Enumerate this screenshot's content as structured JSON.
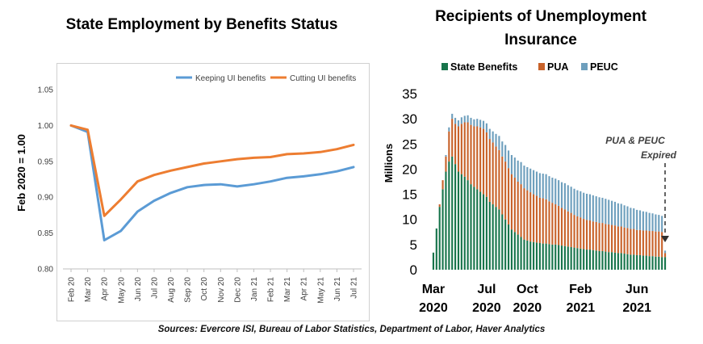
{
  "left_chart": {
    "title": "State Employment by Benefits Status",
    "ylabel": "Feb 2020 = 1.00"
  },
  "right_chart": {
    "title_line1": "Recipients of Unemployment",
    "title_line2": "Insurance",
    "ylabel": "Millions",
    "annotation_line1": "PUA & PEUC",
    "annotation_line2": "Expired"
  },
  "sources": "Sources: Evercore ISI, Bureau of Labor Statistics, Department of Labor, Haver Analytics",
  "chart_data": [
    {
      "type": "line",
      "title": "State Employment by Benefits Status",
      "xlabel": "",
      "ylabel": "Feb 2020 = 1.00",
      "ylim": [
        0.8,
        1.05
      ],
      "yticks": [
        "0.80",
        "0.85",
        "0.90",
        "0.95",
        "1.00",
        "1.05"
      ],
      "categories": [
        "Feb 20",
        "Mar 20",
        "Apr 20",
        "May 20",
        "Jun 20",
        "Jul 20",
        "Aug 20",
        "Sep 20",
        "Oct 20",
        "Nov 20",
        "Dec 20",
        "Jan 21",
        "Feb 21",
        "Mar 21",
        "Apr 21",
        "May 21",
        "Jun 21",
        "Jul 21"
      ],
      "legend_position": "top-right",
      "grid": false,
      "series": [
        {
          "name": "Keeping UI benefits",
          "color": "#5b9bd5",
          "values": [
            1.0,
            0.991,
            0.84,
            0.853,
            0.88,
            0.895,
            0.906,
            0.914,
            0.917,
            0.918,
            0.915,
            0.918,
            0.922,
            0.927,
            0.929,
            0.932,
            0.936,
            0.942
          ]
        },
        {
          "name": "Cutting UI benefits",
          "color": "#ed7d31",
          "values": [
            1.0,
            0.994,
            0.874,
            0.897,
            0.922,
            0.931,
            0.937,
            0.942,
            0.947,
            0.95,
            0.953,
            0.955,
            0.956,
            0.96,
            0.961,
            0.963,
            0.967,
            0.973
          ]
        }
      ]
    },
    {
      "type": "bar",
      "stacked": true,
      "title": "Recipients of Unemployment Insurance",
      "ylabel": "Millions",
      "ylim": [
        0,
        35
      ],
      "yticks": [
        "0",
        "5",
        "10",
        "15",
        "20",
        "25",
        "30",
        "35"
      ],
      "xtick_labels": [
        {
          "line1": "Mar",
          "line2": "2020",
          "week": 0
        },
        {
          "line1": "Jul",
          "line2": "2020",
          "week": 17
        },
        {
          "line1": "Oct",
          "line2": "2020",
          "week": 30
        },
        {
          "line1": "Feb",
          "line2": "2021",
          "week": 47
        },
        {
          "line1": "Jun",
          "line2": "2021",
          "week": 65
        }
      ],
      "legend_position": "top",
      "series": [
        {
          "name": "State Benefits",
          "color": "#17744b",
          "values": [
            3.4,
            8.2,
            12.5,
            16.0,
            19.5,
            21.5,
            22.5,
            21.0,
            19.5,
            19.0,
            18.5,
            17.8,
            17.0,
            16.5,
            16.0,
            15.5,
            15.0,
            14.5,
            13.5,
            13.0,
            12.5,
            12.0,
            11.0,
            10.0,
            9.0,
            8.0,
            7.5,
            7.0,
            6.5,
            6.0,
            5.8,
            5.6,
            5.5,
            5.4,
            5.3,
            5.2,
            5.2,
            5.1,
            5.0,
            5.0,
            4.9,
            4.8,
            4.7,
            4.6,
            4.5,
            4.4,
            4.3,
            4.2,
            4.1,
            4.0,
            4.0,
            3.9,
            3.8,
            3.7,
            3.7,
            3.6,
            3.5,
            3.5,
            3.4,
            3.3,
            3.3,
            3.2,
            3.1,
            3.0,
            3.0,
            2.9,
            2.9,
            2.8,
            2.8,
            2.7,
            2.7,
            2.6,
            2.6,
            2.5,
            2.5
          ]
        },
        {
          "name": "PUA",
          "color": "#c8622a",
          "values": [
            0,
            0,
            0.5,
            1.8,
            3.0,
            6.0,
            7.5,
            8.0,
            9.0,
            10.0,
            10.8,
            11.5,
            11.8,
            12.0,
            12.5,
            12.8,
            13.0,
            12.8,
            12.5,
            12.3,
            12.0,
            11.8,
            11.5,
            11.5,
            11.2,
            11.0,
            10.8,
            10.5,
            10.5,
            10.2,
            10.0,
            9.8,
            9.5,
            9.3,
            9.0,
            9.0,
            8.8,
            8.5,
            8.3,
            8.0,
            7.8,
            7.5,
            7.3,
            7.0,
            6.8,
            6.5,
            6.3,
            6.2,
            6.0,
            5.9,
            5.8,
            5.7,
            5.7,
            5.6,
            5.6,
            5.5,
            5.5,
            5.4,
            5.4,
            5.3,
            5.3,
            5.2,
            5.2,
            5.1,
            5.1,
            5.0,
            5.0,
            5.0,
            5.0,
            5.0,
            5.0,
            5.0,
            5.0,
            5.0,
            0.8
          ]
        },
        {
          "name": "PEUC",
          "color": "#6e9fbd",
          "values": [
            0,
            0,
            0,
            0,
            0.3,
            0.8,
            1.0,
            1.2,
            1.2,
            1.3,
            1.3,
            1.4,
            1.4,
            1.4,
            1.5,
            1.5,
            1.6,
            1.8,
            2.0,
            2.2,
            2.5,
            2.8,
            3.0,
            3.3,
            3.5,
            3.8,
            4.0,
            4.2,
            4.4,
            4.5,
            4.6,
            4.7,
            4.8,
            4.8,
            4.9,
            4.9,
            5.0,
            5.0,
            5.0,
            5.1,
            5.1,
            5.1,
            5.2,
            5.2,
            5.2,
            5.2,
            5.2,
            5.2,
            5.2,
            5.2,
            5.2,
            5.2,
            5.1,
            5.1,
            5.0,
            5.0,
            4.9,
            4.8,
            4.7,
            4.6,
            4.5,
            4.4,
            4.3,
            4.2,
            4.1,
            4.0,
            3.9,
            3.8,
            3.7,
            3.6,
            3.5,
            3.4,
            3.3,
            3.2,
            0.5
          ]
        }
      ]
    }
  ]
}
